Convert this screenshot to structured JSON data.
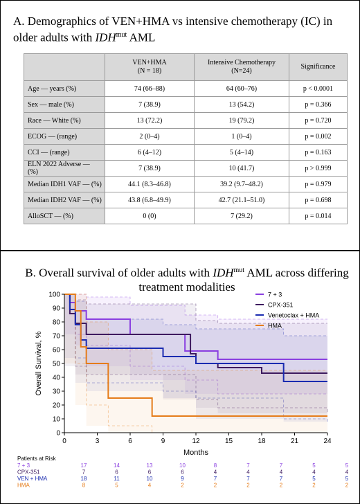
{
  "panel_a": {
    "title_prefix": "A.  Demographics of VEN+HMA vs intensive chemotherapy (IC) in older adults with ",
    "title_italic": "IDH",
    "title_sup": "mut",
    "title_suffix": " AML",
    "columns": [
      "",
      "VEN+HMA\n(N = 18)",
      "Intensive Chemotherapy\n(N=24)",
      "Significance"
    ],
    "rows": [
      {
        "label": "Age — years (%)",
        "ven": "74 (66–88)",
        "ic": "64 (60–76)",
        "sig": "p < 0.0001"
      },
      {
        "label": "Sex — male (%)",
        "ven": "7 (38.9)",
        "ic": "13 (54.2)",
        "sig": "p = 0.366"
      },
      {
        "label": "Race — White (%)",
        "ven": "13 (72.2)",
        "ic": "19 (79.2)",
        "sig": "p = 0.720"
      },
      {
        "label": "ECOG — (range)",
        "ven": "2 (0–4)",
        "ic": "1 (0–4)",
        "sig": "p = 0.002"
      },
      {
        "label": "CCI — (range)",
        "ven": "6 (4–12)",
        "ic": "5 (4–14)",
        "sig": "p = 0.163"
      },
      {
        "label": "ELN 2022 Adverse — (%)",
        "ven": "7 (38.9)",
        "ic": "10 (41.7)",
        "sig": "p > 0.999"
      },
      {
        "label": "Median IDH1 VAF — (%)",
        "ven": "44.1 (8.3–46.8)",
        "ic": "39.2 (9.7–48.2)",
        "sig": "p = 0.979"
      },
      {
        "label": "Median IDH2 VAF — (%)",
        "ven": "43.8 (6.8–49.9)",
        "ic": "42.7 (21.1–51.0)",
        "sig": "p = 0.698"
      },
      {
        "label": "AlloSCT — (%)",
        "ven": "0 (0)",
        "ic": "7 (29.2)",
        "sig": "p = 0.014"
      }
    ]
  },
  "panel_b": {
    "title_prefix": "B.      Overall survival of older adults with ",
    "title_italic": "IDH",
    "title_sup": "mut",
    "title_suffix": " AML across differing treatment modalities",
    "risk_header": "Patients at Risk"
  },
  "chart_data": {
    "type": "line",
    "subtype": "kaplan-meier step curves with confidence bands",
    "xlabel": "Months",
    "ylabel": "Overall Survival, %",
    "xlim": [
      0,
      24
    ],
    "ylim": [
      0,
      100
    ],
    "xticks": [
      0,
      3,
      6,
      9,
      12,
      15,
      18,
      21,
      24
    ],
    "yticks": [
      0,
      10,
      20,
      30,
      40,
      50,
      60,
      70,
      80,
      90,
      100
    ],
    "legend_position": "top-right",
    "series": [
      {
        "name": "7 + 3",
        "color": "#8a3fe0",
        "steps": [
          [
            0,
            100
          ],
          [
            0.5,
            94
          ],
          [
            1,
            88
          ],
          [
            2,
            82
          ],
          [
            6,
            71
          ],
          [
            11,
            59
          ],
          [
            14,
            53
          ],
          [
            24,
            53
          ]
        ],
        "ci_upper": [
          [
            0,
            100
          ],
          [
            1,
            100
          ],
          [
            2,
            98
          ],
          [
            6,
            92
          ],
          [
            11,
            85
          ],
          [
            14,
            82
          ],
          [
            24,
            82
          ]
        ],
        "ci_lower": [
          [
            0,
            100
          ],
          [
            1,
            71
          ],
          [
            2,
            63
          ],
          [
            6,
            48
          ],
          [
            11,
            38
          ],
          [
            14,
            28
          ],
          [
            24,
            28
          ]
        ],
        "at_risk": [
          17,
          14,
          13,
          10,
          8,
          7,
          7,
          5,
          5
        ]
      },
      {
        "name": "CPX-351",
        "color": "#3d1a5e",
        "steps": [
          [
            0,
            100
          ],
          [
            0.5,
            86
          ],
          [
            1,
            79
          ],
          [
            2,
            71
          ],
          [
            9,
            71
          ],
          [
            11.5,
            57
          ],
          [
            12,
            50
          ],
          [
            14,
            47
          ],
          [
            18,
            43
          ],
          [
            24,
            43
          ]
        ],
        "ci_upper": [
          [
            0,
            100
          ],
          [
            1,
            96
          ],
          [
            2,
            93
          ],
          [
            9,
            93
          ],
          [
            12,
            81
          ],
          [
            14,
            79
          ],
          [
            24,
            79
          ]
        ],
        "ci_lower": [
          [
            0,
            100
          ],
          [
            1,
            48
          ],
          [
            2,
            42
          ],
          [
            9,
            42
          ],
          [
            12,
            24
          ],
          [
            14,
            18
          ],
          [
            24,
            14
          ]
        ],
        "at_risk": [
          7,
          6,
          6,
          6,
          4,
          4,
          4,
          4,
          4
        ]
      },
      {
        "name": "Venetoclax + HMA",
        "color": "#1a2bb0",
        "steps": [
          [
            0,
            100
          ],
          [
            0.5,
            89
          ],
          [
            1,
            78
          ],
          [
            1.5,
            67
          ],
          [
            2,
            61
          ],
          [
            9,
            55
          ],
          [
            12,
            50
          ],
          [
            20,
            37
          ],
          [
            24,
            37
          ]
        ],
        "ci_upper": [
          [
            0,
            100
          ],
          [
            1,
            95
          ],
          [
            2,
            82
          ],
          [
            9,
            78
          ],
          [
            12,
            75
          ],
          [
            20,
            70
          ],
          [
            24,
            70
          ]
        ],
        "ci_lower": [
          [
            0,
            100
          ],
          [
            1,
            54
          ],
          [
            2,
            36
          ],
          [
            9,
            30
          ],
          [
            12,
            25
          ],
          [
            20,
            10
          ],
          [
            24,
            8
          ]
        ],
        "at_risk": [
          18,
          11,
          10,
          9,
          7,
          7,
          7,
          5,
          5
        ]
      },
      {
        "name": "HMA",
        "color": "#e57c1a",
        "steps": [
          [
            0,
            100
          ],
          [
            1,
            88
          ],
          [
            1.5,
            62
          ],
          [
            2,
            50
          ],
          [
            4,
            25
          ],
          [
            8,
            12
          ],
          [
            24,
            12
          ]
        ],
        "ci_upper": [
          [
            0,
            100
          ],
          [
            1,
            100
          ],
          [
            2,
            80
          ],
          [
            4,
            60
          ],
          [
            8,
            45
          ],
          [
            24,
            45
          ]
        ],
        "ci_lower": [
          [
            0,
            100
          ],
          [
            1,
            50
          ],
          [
            2,
            20
          ],
          [
            4,
            5
          ],
          [
            8,
            0
          ],
          [
            24,
            0
          ]
        ],
        "at_risk": [
          8,
          5,
          4,
          2,
          2,
          2,
          2,
          2,
          2
        ]
      }
    ]
  }
}
